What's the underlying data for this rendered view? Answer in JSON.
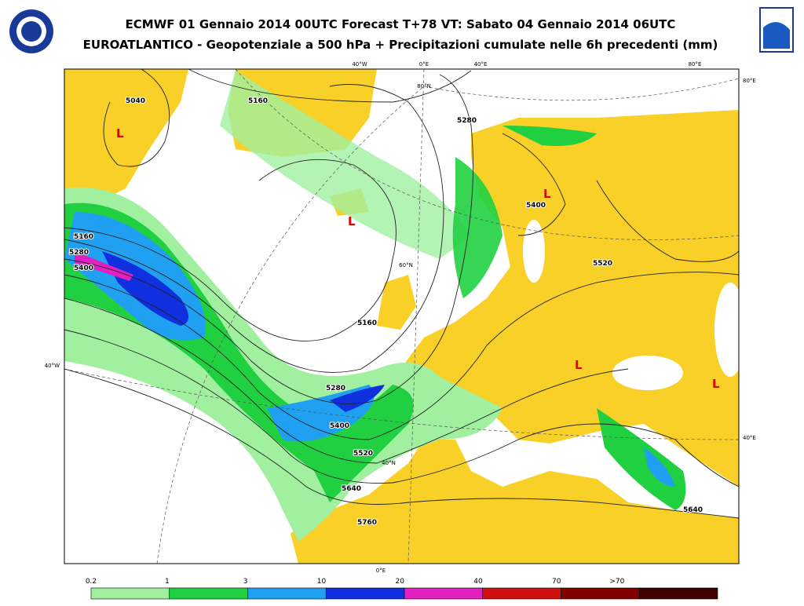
{
  "header": {
    "title_line_1": "ECMWF 01 Gennaio 2014 00UTC Forecast T+78 VT: Sabato 04 Gennaio 2014 06UTC",
    "title_line_2": "EUROATLANTICO - Geopotenziale a 500 hPa + Precipitazioni cumulate nelle 6h precedenti (mm)"
  },
  "graticule_labels": [
    "40°W",
    "0°E",
    "40°E",
    "80°E",
    "80°E",
    "80°N",
    "60°N",
    "40°W",
    "40°E",
    "40°N",
    "0°E"
  ],
  "contour_labels": [
    "5040",
    "5160",
    "5280",
    "5160",
    "5280",
    "5400",
    "5400",
    "5520",
    "5160",
    "5280",
    "5400",
    "5520",
    "5640",
    "5760",
    "5640"
  ],
  "low_marker": "L",
  "legend": {
    "labels": [
      "0.2",
      "1",
      "3",
      "10",
      "20",
      "40",
      "70",
      ">70"
    ],
    "colors": [
      "#a0f0a0",
      "#20d040",
      "#20a0f0",
      "#1030e0",
      "#e020c0",
      "#d01010",
      "#800000",
      "#400000"
    ]
  }
}
